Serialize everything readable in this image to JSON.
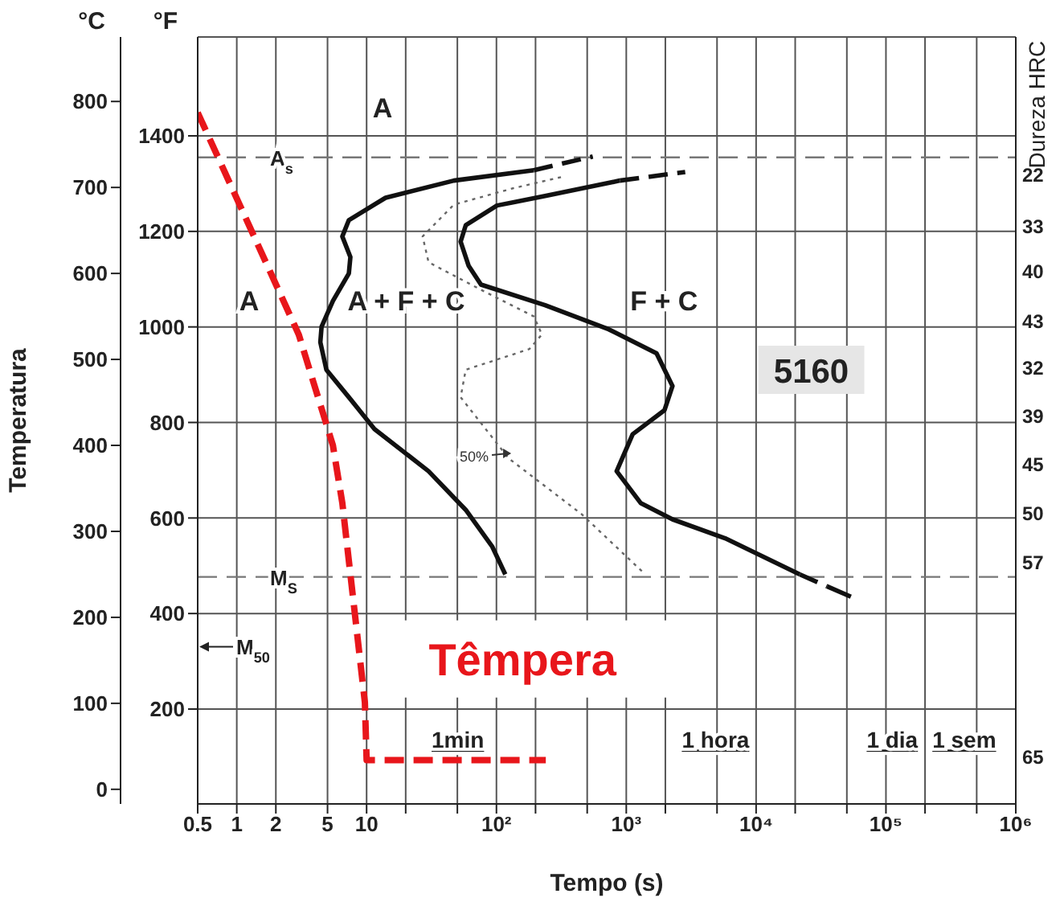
{
  "chart_data": {
    "type": "line",
    "xlabel": "Tempo (s)",
    "ylabel": "Temperatura",
    "y2label": "°F",
    "log": "x",
    "grid": true,
    "marker": "none",
    "xlim": [
      0.5,
      1000000
    ],
    "xticks": [
      0.5,
      1,
      2,
      5,
      10,
      {
        "value": 20,
        "label": null
      },
      {
        "value": 50,
        "label": null
      },
      {
        "value": 100,
        "label": "10²"
      },
      {
        "value": 200,
        "label": null
      },
      {
        "value": 500,
        "label": null
      },
      {
        "value": 1000,
        "label": "10³"
      },
      {
        "value": 2000,
        "label": null
      },
      {
        "value": 5000,
        "label": null
      },
      {
        "value": 10000,
        "label": "10⁴"
      },
      {
        "value": 20000,
        "label": null
      },
      {
        "value": 50000,
        "label": null
      },
      {
        "value": 100000,
        "label": "10⁵"
      },
      {
        "value": 200000,
        "label": null
      },
      {
        "value": 500000,
        "label": null
      },
      {
        "value": 1000000,
        "label": "10⁶"
      }
    ],
    "ylim": [
      -17,
      875
    ],
    "yticks": [
      0,
      100,
      200,
      300,
      400,
      500,
      600,
      700,
      800
    ],
    "y2lim": [
      1.4,
      1607
    ],
    "y2ticks": [
      200,
      400,
      600,
      800,
      1000,
      1200,
      1400
    ],
    "ref_lines": [
      {
        "axis": "y",
        "value": 735,
        "label": "A$_{s}$",
        "color": "#777777",
        "line_style": "dashed"
      },
      {
        "axis": "y",
        "value": 247,
        "label": "M$_{S}$",
        "color": "#777777",
        "line_style": "dashed"
      }
    ],
    "series": [
      {
        "color": "#111111",
        "line_style": "solid",
        "x": [
          194,
          47,
          14,
          7.3,
          6.5,
          7.5,
          7.3,
          5.5,
          4.5,
          4.4,
          4.9,
          7.3,
          11.5,
          30,
          58,
          93,
          117
        ],
        "values": [
          720,
          708,
          688,
          662,
          643,
          619,
          600,
          568,
          538,
          520,
          488,
          456,
          419,
          370,
          325,
          282,
          250
        ]
      },
      {
        "color": "#111111",
        "line_style": "dashed",
        "x": [
          194,
          552
        ],
        "values": [
          720,
          736
        ]
      },
      {
        "color": "#111111",
        "line_style": "solid",
        "x": [
          893,
          237,
          101,
          58,
          53,
          61,
          76,
          237,
          733,
          1710,
          2270,
          1970,
          1120,
          843,
          1290,
          2270,
          5770,
          21700
        ],
        "values": [
          708,
          690,
          679,
          656,
          637,
          609,
          587,
          563,
          535,
          507,
          469,
          441,
          413,
          370,
          333,
          314,
          292,
          250
        ]
      },
      {
        "color": "#111111",
        "line_style": "dashed",
        "x": [
          893,
          2844
        ],
        "values": [
          708,
          718
        ]
      },
      {
        "color": "#111111",
        "line_style": "dashed",
        "x": [
          21700,
          35200
        ],
        "values": [
          250,
          236
        ]
      },
      {
        "color": "#111111",
        "line_style": "solid",
        "x": [
          35200,
          53700
        ],
        "values": [
          236,
          224
        ]
      },
      {
        "color": "#666666",
        "line_style": "dotted",
        "x": [
          314,
          134,
          47,
          27,
          30,
          76,
          194,
          224,
          179,
          58,
          53,
          76,
          124,
          453,
          1400
        ],
        "values": [
          712,
          699,
          680,
          643,
          613,
          581,
          550,
          529,
          512,
          488,
          456,
          426,
          385,
          320,
          250
        ]
      },
      {
        "color": "#e8161b",
        "line_style": "dashed",
        "x": [
          0.5,
          3,
          5.5,
          6.5,
          9.7,
          10,
          240
        ],
        "values": [
          787,
          529,
          400,
          333,
          101,
          34,
          34
        ]
      }
    ],
    "annotations": [
      "Têmpera",
      "A",
      "A",
      "A + F + C",
      "F + C",
      "5160",
      "50%",
      "M$_{50}$",
      "1min",
      "1 hora",
      "1 dia",
      "1 sem",
      "°C",
      "22",
      "33",
      "40",
      "43",
      "32",
      "39",
      "45",
      "50",
      "57",
      "65",
      "Dureza HRC"
    ]
  }
}
